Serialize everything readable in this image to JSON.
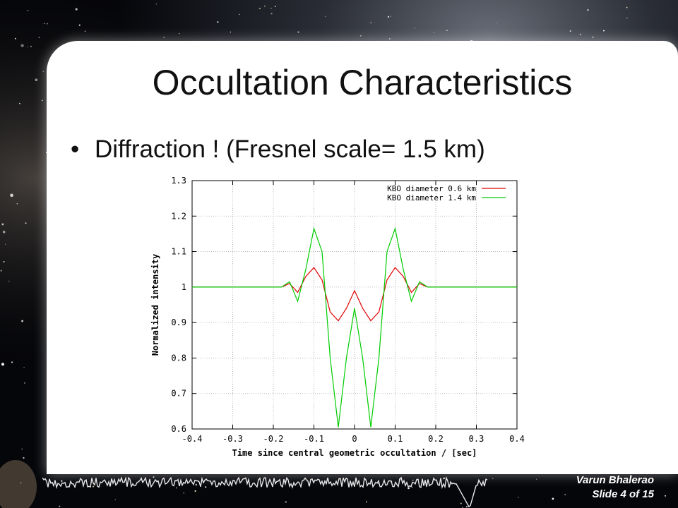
{
  "slide": {
    "title": "Occultation Characteristics",
    "bullet": "Diffraction ! (Fresnel scale= 1.5 km)",
    "author": "Varun Bhalerao",
    "slide_number": "Slide 4 of 15"
  },
  "colors": {
    "series_red": "#e00000",
    "series_green": "#00cc00",
    "grid": "#aaaaaa"
  },
  "chart_data": {
    "type": "line",
    "xlabel": "Time since central geometric occultation / [sec]",
    "ylabel": "Normalized intensity",
    "xlim": [
      -0.4,
      0.4
    ],
    "ylim": [
      0.6,
      1.3
    ],
    "xticks": [
      "-0.4",
      "-0.3",
      "-0.2",
      "-0.1",
      "0",
      "0.1",
      "0.2",
      "0.3",
      "0.4"
    ],
    "yticks": [
      "0.6",
      "0.7",
      "0.8",
      "0.9",
      "1",
      "1.1",
      "1.2",
      "1.3"
    ],
    "grid": true,
    "legend_position": "top-right",
    "series": [
      {
        "name": "KBO diameter 0.6 km",
        "color": "#e00000",
        "x": [
          -0.4,
          -0.3,
          -0.2,
          -0.18,
          -0.16,
          -0.14,
          -0.12,
          -0.1,
          -0.08,
          -0.06,
          -0.04,
          -0.02,
          0,
          0.02,
          0.04,
          0.06,
          0.08,
          0.1,
          0.12,
          0.14,
          0.16,
          0.18,
          0.2,
          0.3,
          0.4
        ],
        "y": [
          1.0,
          1.0,
          1.0,
          1.0,
          1.01,
          0.985,
          1.03,
          1.055,
          1.02,
          0.93,
          0.905,
          0.94,
          0.99,
          0.94,
          0.905,
          0.93,
          1.02,
          1.055,
          1.03,
          0.985,
          1.01,
          1.0,
          1.0,
          1.0,
          1.0
        ]
      },
      {
        "name": "KBO diameter 1.4 km",
        "color": "#00cc00",
        "x": [
          -0.4,
          -0.3,
          -0.2,
          -0.18,
          -0.16,
          -0.14,
          -0.12,
          -0.1,
          -0.08,
          -0.06,
          -0.04,
          -0.02,
          0,
          0.02,
          0.04,
          0.06,
          0.08,
          0.1,
          0.12,
          0.14,
          0.16,
          0.18,
          0.2,
          0.3,
          0.4
        ],
        "y": [
          1.0,
          1.0,
          1.0,
          1.0,
          1.015,
          0.96,
          1.05,
          1.165,
          1.1,
          0.8,
          0.605,
          0.8,
          0.94,
          0.8,
          0.605,
          0.8,
          1.1,
          1.165,
          1.05,
          0.96,
          1.015,
          1.0,
          1.0,
          1.0,
          1.0
        ]
      }
    ]
  }
}
